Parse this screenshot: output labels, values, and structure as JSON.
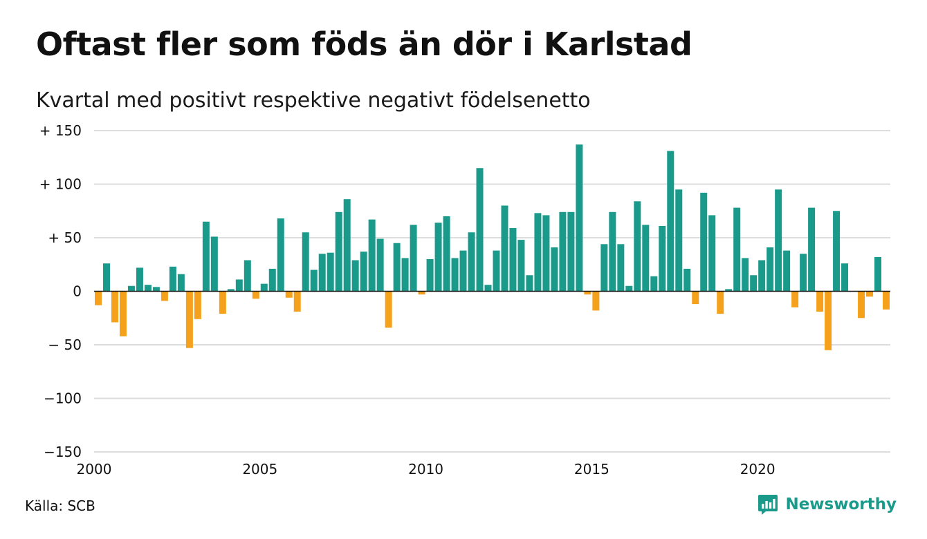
{
  "title": "Oftast fler som föds än dör i Karlstad",
  "subtitle": "Kvartal med positivt respektive negativt födelsenetto",
  "source": "Källa: SCB",
  "brand": {
    "name": "Newsworthy",
    "icon": "newsworthy-logo-icon",
    "color": "#1a9a8a"
  },
  "colors": {
    "positive": "#1a9a8a",
    "negative": "#f5a11c",
    "grid": "#dddddd",
    "zero_line": "#111111"
  },
  "chart_data": {
    "type": "bar",
    "title": "Oftast fler som föds än dör i Karlstad",
    "subtitle": "Kvartal med positivt respektive negativt födelsenetto",
    "xlabel": "",
    "ylabel": "",
    "ylim": [
      -150,
      150
    ],
    "xlim": [
      2000,
      2024
    ],
    "grid": true,
    "legend": "none",
    "y_ticks": [
      {
        "value": 150,
        "label": "+ 150"
      },
      {
        "value": 100,
        "label": "+ 100"
      },
      {
        "value": 50,
        "label": "+  50"
      },
      {
        "value": 0,
        "label": "0"
      },
      {
        "value": -50,
        "label": "− 50"
      },
      {
        "value": -100,
        "label": "−100"
      },
      {
        "value": -150,
        "label": "−150"
      }
    ],
    "x_ticks": [
      {
        "value": 2000,
        "label": "2000"
      },
      {
        "value": 2005,
        "label": "2005"
      },
      {
        "value": 2010,
        "label": "2010"
      },
      {
        "value": 2015,
        "label": "2015"
      },
      {
        "value": 2020,
        "label": "2020"
      }
    ],
    "start_year": 2000,
    "quarters_per_year": 4,
    "values": [
      -13,
      26,
      -29,
      -42,
      5,
      22,
      6,
      4,
      -9,
      23,
      16,
      -53,
      -26,
      65,
      51,
      -21,
      2,
      11,
      29,
      -7,
      7,
      21,
      68,
      -6,
      -19,
      55,
      20,
      35,
      36,
      74,
      86,
      29,
      37,
      67,
      49,
      -34,
      45,
      31,
      62,
      -3,
      30,
      64,
      70,
      31,
      38,
      55,
      115,
      6,
      38,
      80,
      59,
      48,
      15,
      73,
      71,
      41,
      74,
      74,
      137,
      -3,
      -18,
      44,
      74,
      44,
      5,
      84,
      62,
      14,
      61,
      131,
      95,
      21,
      -12,
      92,
      71,
      -21,
      2,
      78,
      31,
      15,
      29,
      41,
      95,
      38,
      -15,
      35,
      78,
      -19,
      -55,
      75,
      26,
      0,
      -25,
      -5,
      32,
      -17
    ]
  }
}
